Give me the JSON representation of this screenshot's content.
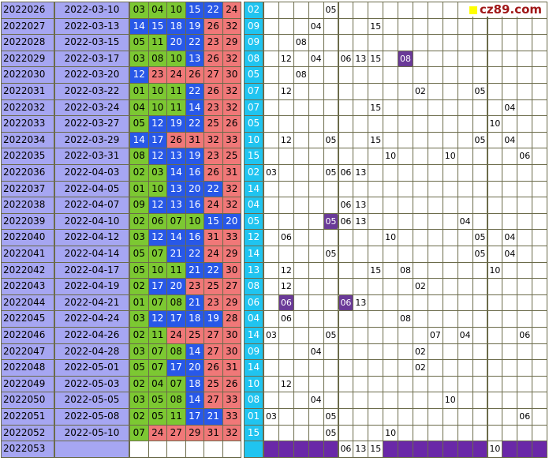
{
  "logo_text": "cz89.com",
  "rows": [
    {
      "issue": "2022026",
      "date": "2022-03-10",
      "reds": [
        "03",
        "04",
        "10",
        "15",
        "22",
        "24"
      ],
      "blue": "02",
      "marks": [
        {
          "c": 4,
          "v": "05"
        }
      ]
    },
    {
      "issue": "2022027",
      "date": "2022-03-13",
      "reds": [
        "14",
        "15",
        "18",
        "19",
        "26",
        "32"
      ],
      "blue": "09",
      "marks": [
        {
          "c": 3,
          "v": "04"
        },
        {
          "c": 7,
          "v": "15"
        }
      ]
    },
    {
      "issue": "2022028",
      "date": "2022-03-15",
      "reds": [
        "05",
        "11",
        "20",
        "22",
        "23",
        "29"
      ],
      "blue": "09",
      "marks": [
        {
          "c": 2,
          "v": "08"
        }
      ]
    },
    {
      "issue": "2022029",
      "date": "2022-03-17",
      "reds": [
        "03",
        "08",
        "10",
        "13",
        "26",
        "32"
      ],
      "blue": "08",
      "marks": [
        {
          "c": 1,
          "v": "12"
        },
        {
          "c": 3,
          "v": "04"
        },
        {
          "c": 5,
          "v": "06"
        },
        {
          "c": 6,
          "v": "13"
        },
        {
          "c": 7,
          "v": "15"
        },
        {
          "c": 9,
          "v": "08",
          "hl": true
        }
      ]
    },
    {
      "issue": "2022030",
      "date": "2022-03-20",
      "reds": [
        "12",
        "23",
        "24",
        "26",
        "27",
        "30"
      ],
      "blue": "05",
      "marks": [
        {
          "c": 2,
          "v": "08"
        }
      ]
    },
    {
      "issue": "2022031",
      "date": "2022-03-22",
      "reds": [
        "01",
        "10",
        "11",
        "22",
        "26",
        "32"
      ],
      "blue": "07",
      "marks": [
        {
          "c": 1,
          "v": "12"
        },
        {
          "c": 10,
          "v": "02"
        },
        {
          "c": 14,
          "v": "05"
        }
      ]
    },
    {
      "issue": "2022032",
      "date": "2022-03-24",
      "reds": [
        "04",
        "10",
        "11",
        "14",
        "23",
        "32"
      ],
      "blue": "07",
      "marks": [
        {
          "c": 7,
          "v": "15"
        },
        {
          "c": 16,
          "v": "04"
        }
      ]
    },
    {
      "issue": "2022033",
      "date": "2022-03-27",
      "reds": [
        "05",
        "12",
        "19",
        "22",
        "25",
        "26"
      ],
      "blue": "05",
      "marks": [
        {
          "c": 15,
          "v": "10"
        }
      ]
    },
    {
      "issue": "2022034",
      "date": "2022-03-29",
      "reds": [
        "14",
        "17",
        "26",
        "31",
        "32",
        "33"
      ],
      "blue": "10",
      "marks": [
        {
          "c": 1,
          "v": "12"
        },
        {
          "c": 4,
          "v": "05"
        },
        {
          "c": 7,
          "v": "15"
        },
        {
          "c": 14,
          "v": "05"
        },
        {
          "c": 16,
          "v": "04"
        }
      ]
    },
    {
      "issue": "2022035",
      "date": "2022-03-31",
      "reds": [
        "08",
        "12",
        "13",
        "19",
        "23",
        "25"
      ],
      "blue": "15",
      "marks": [
        {
          "c": 8,
          "v": "10"
        },
        {
          "c": 12,
          "v": "10"
        },
        {
          "c": 17,
          "v": "06"
        }
      ]
    },
    {
      "issue": "2022036",
      "date": "2022-04-03",
      "reds": [
        "02",
        "03",
        "14",
        "16",
        "26",
        "31"
      ],
      "blue": "02",
      "marks": [
        {
          "c": 0,
          "v": "03"
        },
        {
          "c": 4,
          "v": "05"
        },
        {
          "c": 5,
          "v": "06"
        },
        {
          "c": 6,
          "v": "13"
        }
      ]
    },
    {
      "issue": "2022037",
      "date": "2022-04-05",
      "reds": [
        "01",
        "10",
        "13",
        "20",
        "22",
        "32"
      ],
      "blue": "14",
      "marks": []
    },
    {
      "issue": "2022038",
      "date": "2022-04-07",
      "reds": [
        "09",
        "12",
        "13",
        "16",
        "24",
        "32"
      ],
      "blue": "04",
      "marks": [
        {
          "c": 5,
          "v": "06"
        },
        {
          "c": 6,
          "v": "13"
        }
      ]
    },
    {
      "issue": "2022039",
      "date": "2022-04-10",
      "reds": [
        "02",
        "06",
        "07",
        "10",
        "15",
        "20"
      ],
      "blue": "05",
      "marks": [
        {
          "c": 4,
          "v": "05",
          "hl": true
        },
        {
          "c": 5,
          "v": "06"
        },
        {
          "c": 6,
          "v": "13"
        },
        {
          "c": 13,
          "v": "04"
        }
      ]
    },
    {
      "issue": "2022040",
      "date": "2022-04-12",
      "reds": [
        "03",
        "12",
        "14",
        "16",
        "31",
        "33"
      ],
      "blue": "12",
      "marks": [
        {
          "c": 1,
          "v": "06"
        },
        {
          "c": 8,
          "v": "10"
        },
        {
          "c": 14,
          "v": "05"
        },
        {
          "c": 16,
          "v": "04"
        }
      ]
    },
    {
      "issue": "2022041",
      "date": "2022-04-14",
      "reds": [
        "05",
        "07",
        "21",
        "22",
        "24",
        "29"
      ],
      "blue": "14",
      "marks": [
        {
          "c": 4,
          "v": "05"
        },
        {
          "c": 14,
          "v": "05"
        },
        {
          "c": 16,
          "v": "04"
        }
      ]
    },
    {
      "issue": "2022042",
      "date": "2022-04-17",
      "reds": [
        "05",
        "10",
        "11",
        "21",
        "22",
        "30"
      ],
      "blue": "13",
      "marks": [
        {
          "c": 1,
          "v": "12"
        },
        {
          "c": 7,
          "v": "15"
        },
        {
          "c": 9,
          "v": "08"
        },
        {
          "c": 15,
          "v": "10"
        }
      ]
    },
    {
      "issue": "2022043",
      "date": "2022-04-19",
      "reds": [
        "02",
        "17",
        "20",
        "23",
        "25",
        "27"
      ],
      "blue": "08",
      "marks": [
        {
          "c": 1,
          "v": "12"
        },
        {
          "c": 10,
          "v": "02"
        }
      ]
    },
    {
      "issue": "2022044",
      "date": "2022-04-21",
      "reds": [
        "01",
        "07",
        "08",
        "21",
        "23",
        "29"
      ],
      "blue": "06",
      "marks": [
        {
          "c": 1,
          "v": "06",
          "hl": true
        },
        {
          "c": 5,
          "v": "06",
          "hl": true
        },
        {
          "c": 6,
          "v": "13"
        }
      ]
    },
    {
      "issue": "2022045",
      "date": "2022-04-24",
      "reds": [
        "03",
        "12",
        "17",
        "18",
        "19",
        "28"
      ],
      "blue": "04",
      "marks": [
        {
          "c": 1,
          "v": "06"
        },
        {
          "c": 9,
          "v": "08"
        }
      ]
    },
    {
      "issue": "2022046",
      "date": "2022-04-26",
      "reds": [
        "02",
        "11",
        "24",
        "25",
        "27",
        "30"
      ],
      "blue": "14",
      "marks": [
        {
          "c": 0,
          "v": "03"
        },
        {
          "c": 4,
          "v": "05"
        },
        {
          "c": 11,
          "v": "07"
        },
        {
          "c": 13,
          "v": "04"
        },
        {
          "c": 17,
          "v": "06"
        }
      ]
    },
    {
      "issue": "2022047",
      "date": "2022-04-28",
      "reds": [
        "03",
        "07",
        "08",
        "14",
        "27",
        "30"
      ],
      "blue": "09",
      "marks": [
        {
          "c": 3,
          "v": "04"
        },
        {
          "c": 10,
          "v": "02"
        }
      ]
    },
    {
      "issue": "2022048",
      "date": "2022-05-01",
      "reds": [
        "05",
        "07",
        "17",
        "20",
        "26",
        "31"
      ],
      "blue": "14",
      "marks": [
        {
          "c": 10,
          "v": "02"
        }
      ]
    },
    {
      "issue": "2022049",
      "date": "2022-05-03",
      "reds": [
        "02",
        "04",
        "07",
        "18",
        "25",
        "26"
      ],
      "blue": "10",
      "marks": [
        {
          "c": 1,
          "v": "12"
        }
      ]
    },
    {
      "issue": "2022050",
      "date": "2022-05-05",
      "reds": [
        "03",
        "05",
        "08",
        "14",
        "27",
        "33"
      ],
      "blue": "08",
      "marks": [
        {
          "c": 3,
          "v": "04"
        },
        {
          "c": 12,
          "v": "10"
        }
      ]
    },
    {
      "issue": "2022051",
      "date": "2022-05-08",
      "reds": [
        "02",
        "05",
        "11",
        "17",
        "21",
        "33"
      ],
      "blue": "01",
      "marks": [
        {
          "c": 0,
          "v": "03"
        },
        {
          "c": 4,
          "v": "05"
        },
        {
          "c": 17,
          "v": "06"
        }
      ]
    },
    {
      "issue": "2022052",
      "date": "2022-05-10",
      "reds": [
        "07",
        "24",
        "27",
        "29",
        "31",
        "32"
      ],
      "blue": "15",
      "marks": [
        {
          "c": 4,
          "v": "05"
        },
        {
          "c": 8,
          "v": "10"
        }
      ]
    }
  ],
  "prediction_row": {
    "issue": "2022053",
    "date": "",
    "marks": [
      {
        "c": 5,
        "v": "06"
      },
      {
        "c": 6,
        "v": "13"
      },
      {
        "c": 7,
        "v": "15"
      },
      {
        "c": 15,
        "v": "10"
      }
    ]
  },
  "colors": {
    "issue_bg": "#a6a6f2",
    "green": "#7cc832",
    "blue": "#2858e8",
    "red": "#f07878",
    "cyan": "#20c4f0",
    "highlight": "#6a3a98",
    "purple_row": "#6a28a8"
  }
}
